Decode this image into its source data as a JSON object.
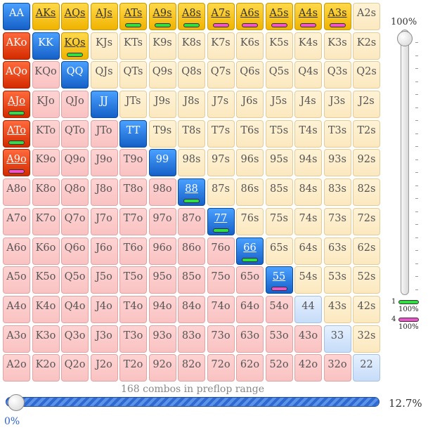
{
  "grid": {
    "rows": [
      [
        {
          "label": "AA",
          "kind": "pair",
          "selected": true
        },
        {
          "label": "AKs",
          "kind": "suit",
          "selected": true
        },
        {
          "label": "AQs",
          "kind": "suit",
          "selected": true
        },
        {
          "label": "AJs",
          "kind": "suit",
          "selected": true
        },
        {
          "label": "ATs",
          "kind": "suit",
          "selected": true,
          "marker": "green"
        },
        {
          "label": "A9s",
          "kind": "suit",
          "selected": true,
          "marker": "green"
        },
        {
          "label": "A8s",
          "kind": "suit",
          "selected": true,
          "marker": "green"
        },
        {
          "label": "A7s",
          "kind": "suit",
          "selected": true,
          "marker": "magenta"
        },
        {
          "label": "A6s",
          "kind": "suit",
          "selected": true,
          "marker": "magenta"
        },
        {
          "label": "A5s",
          "kind": "suit",
          "selected": true,
          "marker": "magenta"
        },
        {
          "label": "A4s",
          "kind": "suit",
          "selected": true,
          "marker": "magenta"
        },
        {
          "label": "A3s",
          "kind": "suit",
          "selected": true,
          "marker": "magenta"
        },
        {
          "label": "A2s",
          "kind": "suit",
          "selected": false
        }
      ],
      [
        {
          "label": "AKo",
          "kind": "off",
          "selected": true
        },
        {
          "label": "KK",
          "kind": "pair",
          "selected": true
        },
        {
          "label": "KQs",
          "kind": "suit",
          "selected": true,
          "marker": "green"
        },
        {
          "label": "KJs",
          "kind": "suit",
          "selected": false
        },
        {
          "label": "KTs",
          "kind": "suit",
          "selected": false
        },
        {
          "label": "K9s",
          "kind": "suit",
          "selected": false
        },
        {
          "label": "K8s",
          "kind": "suit",
          "selected": false
        },
        {
          "label": "K7s",
          "kind": "suit",
          "selected": false
        },
        {
          "label": "K6s",
          "kind": "suit",
          "selected": false
        },
        {
          "label": "K5s",
          "kind": "suit",
          "selected": false
        },
        {
          "label": "K4s",
          "kind": "suit",
          "selected": false
        },
        {
          "label": "K3s",
          "kind": "suit",
          "selected": false
        },
        {
          "label": "K2s",
          "kind": "suit",
          "selected": false
        }
      ],
      [
        {
          "label": "AQo",
          "kind": "off",
          "selected": true
        },
        {
          "label": "KQo",
          "kind": "off",
          "selected": false
        },
        {
          "label": "QQ",
          "kind": "pair",
          "selected": true
        },
        {
          "label": "QJs",
          "kind": "suit",
          "selected": false
        },
        {
          "label": "QTs",
          "kind": "suit",
          "selected": false
        },
        {
          "label": "Q9s",
          "kind": "suit",
          "selected": false
        },
        {
          "label": "Q8s",
          "kind": "suit",
          "selected": false
        },
        {
          "label": "Q7s",
          "kind": "suit",
          "selected": false
        },
        {
          "label": "Q6s",
          "kind": "suit",
          "selected": false
        },
        {
          "label": "Q5s",
          "kind": "suit",
          "selected": false
        },
        {
          "label": "Q4s",
          "kind": "suit",
          "selected": false
        },
        {
          "label": "Q3s",
          "kind": "suit",
          "selected": false
        },
        {
          "label": "Q2s",
          "kind": "suit",
          "selected": false
        }
      ],
      [
        {
          "label": "AJo",
          "kind": "off",
          "selected": true,
          "marker": "green"
        },
        {
          "label": "KJo",
          "kind": "off",
          "selected": false
        },
        {
          "label": "QJo",
          "kind": "off",
          "selected": false
        },
        {
          "label": "JJ",
          "kind": "pair",
          "selected": true
        },
        {
          "label": "JTs",
          "kind": "suit",
          "selected": false
        },
        {
          "label": "J9s",
          "kind": "suit",
          "selected": false
        },
        {
          "label": "J8s",
          "kind": "suit",
          "selected": false
        },
        {
          "label": "J7s",
          "kind": "suit",
          "selected": false
        },
        {
          "label": "J6s",
          "kind": "suit",
          "selected": false
        },
        {
          "label": "J5s",
          "kind": "suit",
          "selected": false
        },
        {
          "label": "J4s",
          "kind": "suit",
          "selected": false
        },
        {
          "label": "J3s",
          "kind": "suit",
          "selected": false
        },
        {
          "label": "J2s",
          "kind": "suit",
          "selected": false
        }
      ],
      [
        {
          "label": "ATo",
          "kind": "off",
          "selected": true,
          "marker": "green"
        },
        {
          "label": "KTo",
          "kind": "off",
          "selected": false
        },
        {
          "label": "QTo",
          "kind": "off",
          "selected": false
        },
        {
          "label": "JTo",
          "kind": "off",
          "selected": false
        },
        {
          "label": "TT",
          "kind": "pair",
          "selected": true
        },
        {
          "label": "T9s",
          "kind": "suit",
          "selected": false
        },
        {
          "label": "T8s",
          "kind": "suit",
          "selected": false
        },
        {
          "label": "T7s",
          "kind": "suit",
          "selected": false
        },
        {
          "label": "T6s",
          "kind": "suit",
          "selected": false
        },
        {
          "label": "T5s",
          "kind": "suit",
          "selected": false
        },
        {
          "label": "T4s",
          "kind": "suit",
          "selected": false
        },
        {
          "label": "T3s",
          "kind": "suit",
          "selected": false
        },
        {
          "label": "T2s",
          "kind": "suit",
          "selected": false
        }
      ],
      [
        {
          "label": "A9o",
          "kind": "off",
          "selected": true,
          "marker": "magenta"
        },
        {
          "label": "K9o",
          "kind": "off",
          "selected": false
        },
        {
          "label": "Q9o",
          "kind": "off",
          "selected": false
        },
        {
          "label": "J9o",
          "kind": "off",
          "selected": false
        },
        {
          "label": "T9o",
          "kind": "off",
          "selected": false
        },
        {
          "label": "99",
          "kind": "pair",
          "selected": true
        },
        {
          "label": "98s",
          "kind": "suit",
          "selected": false
        },
        {
          "label": "97s",
          "kind": "suit",
          "selected": false
        },
        {
          "label": "96s",
          "kind": "suit",
          "selected": false
        },
        {
          "label": "95s",
          "kind": "suit",
          "selected": false
        },
        {
          "label": "94s",
          "kind": "suit",
          "selected": false
        },
        {
          "label": "93s",
          "kind": "suit",
          "selected": false
        },
        {
          "label": "92s",
          "kind": "suit",
          "selected": false
        }
      ],
      [
        {
          "label": "A8o",
          "kind": "off",
          "selected": false
        },
        {
          "label": "K8o",
          "kind": "off",
          "selected": false
        },
        {
          "label": "Q8o",
          "kind": "off",
          "selected": false
        },
        {
          "label": "J8o",
          "kind": "off",
          "selected": false
        },
        {
          "label": "T8o",
          "kind": "off",
          "selected": false
        },
        {
          "label": "98o",
          "kind": "off",
          "selected": false
        },
        {
          "label": "88",
          "kind": "pair",
          "selected": true,
          "marker": "green"
        },
        {
          "label": "87s",
          "kind": "suit",
          "selected": false
        },
        {
          "label": "86s",
          "kind": "suit",
          "selected": false
        },
        {
          "label": "85s",
          "kind": "suit",
          "selected": false
        },
        {
          "label": "84s",
          "kind": "suit",
          "selected": false
        },
        {
          "label": "83s",
          "kind": "suit",
          "selected": false
        },
        {
          "label": "82s",
          "kind": "suit",
          "selected": false
        }
      ],
      [
        {
          "label": "A7o",
          "kind": "off",
          "selected": false
        },
        {
          "label": "K7o",
          "kind": "off",
          "selected": false
        },
        {
          "label": "Q7o",
          "kind": "off",
          "selected": false
        },
        {
          "label": "J7o",
          "kind": "off",
          "selected": false
        },
        {
          "label": "T7o",
          "kind": "off",
          "selected": false
        },
        {
          "label": "97o",
          "kind": "off",
          "selected": false
        },
        {
          "label": "87o",
          "kind": "off",
          "selected": false
        },
        {
          "label": "77",
          "kind": "pair",
          "selected": true,
          "marker": "green"
        },
        {
          "label": "76s",
          "kind": "suit",
          "selected": false
        },
        {
          "label": "75s",
          "kind": "suit",
          "selected": false
        },
        {
          "label": "74s",
          "kind": "suit",
          "selected": false
        },
        {
          "label": "73s",
          "kind": "suit",
          "selected": false
        },
        {
          "label": "72s",
          "kind": "suit",
          "selected": false
        }
      ],
      [
        {
          "label": "A6o",
          "kind": "off",
          "selected": false
        },
        {
          "label": "K6o",
          "kind": "off",
          "selected": false
        },
        {
          "label": "Q6o",
          "kind": "off",
          "selected": false
        },
        {
          "label": "J6o",
          "kind": "off",
          "selected": false
        },
        {
          "label": "T6o",
          "kind": "off",
          "selected": false
        },
        {
          "label": "96o",
          "kind": "off",
          "selected": false
        },
        {
          "label": "86o",
          "kind": "off",
          "selected": false
        },
        {
          "label": "76o",
          "kind": "off",
          "selected": false
        },
        {
          "label": "66",
          "kind": "pair",
          "selected": true,
          "marker": "green"
        },
        {
          "label": "65s",
          "kind": "suit",
          "selected": false
        },
        {
          "label": "64s",
          "kind": "suit",
          "selected": false
        },
        {
          "label": "63s",
          "kind": "suit",
          "selected": false
        },
        {
          "label": "62s",
          "kind": "suit",
          "selected": false
        }
      ],
      [
        {
          "label": "A5o",
          "kind": "off",
          "selected": false
        },
        {
          "label": "K5o",
          "kind": "off",
          "selected": false
        },
        {
          "label": "Q5o",
          "kind": "off",
          "selected": false
        },
        {
          "label": "J5o",
          "kind": "off",
          "selected": false
        },
        {
          "label": "T5o",
          "kind": "off",
          "selected": false
        },
        {
          "label": "95o",
          "kind": "off",
          "selected": false
        },
        {
          "label": "85o",
          "kind": "off",
          "selected": false
        },
        {
          "label": "75o",
          "kind": "off",
          "selected": false
        },
        {
          "label": "65o",
          "kind": "off",
          "selected": false
        },
        {
          "label": "55",
          "kind": "pair",
          "selected": true,
          "marker": "magenta"
        },
        {
          "label": "54s",
          "kind": "suit",
          "selected": false
        },
        {
          "label": "53s",
          "kind": "suit",
          "selected": false
        },
        {
          "label": "52s",
          "kind": "suit",
          "selected": false
        }
      ],
      [
        {
          "label": "A4o",
          "kind": "off",
          "selected": false
        },
        {
          "label": "K4o",
          "kind": "off",
          "selected": false
        },
        {
          "label": "Q4o",
          "kind": "off",
          "selected": false
        },
        {
          "label": "J4o",
          "kind": "off",
          "selected": false
        },
        {
          "label": "T4o",
          "kind": "off",
          "selected": false
        },
        {
          "label": "94o",
          "kind": "off",
          "selected": false
        },
        {
          "label": "84o",
          "kind": "off",
          "selected": false
        },
        {
          "label": "74o",
          "kind": "off",
          "selected": false
        },
        {
          "label": "64o",
          "kind": "off",
          "selected": false
        },
        {
          "label": "54o",
          "kind": "off",
          "selected": false
        },
        {
          "label": "44",
          "kind": "pair",
          "selected": false
        },
        {
          "label": "43s",
          "kind": "suit",
          "selected": false
        },
        {
          "label": "42s",
          "kind": "suit",
          "selected": false
        }
      ],
      [
        {
          "label": "A3o",
          "kind": "off",
          "selected": false
        },
        {
          "label": "K3o",
          "kind": "off",
          "selected": false
        },
        {
          "label": "Q3o",
          "kind": "off",
          "selected": false
        },
        {
          "label": "J3o",
          "kind": "off",
          "selected": false
        },
        {
          "label": "T3o",
          "kind": "off",
          "selected": false
        },
        {
          "label": "93o",
          "kind": "off",
          "selected": false
        },
        {
          "label": "83o",
          "kind": "off",
          "selected": false
        },
        {
          "label": "73o",
          "kind": "off",
          "selected": false
        },
        {
          "label": "63o",
          "kind": "off",
          "selected": false
        },
        {
          "label": "53o",
          "kind": "off",
          "selected": false
        },
        {
          "label": "43o",
          "kind": "off",
          "selected": false
        },
        {
          "label": "33",
          "kind": "pair",
          "selected": false
        },
        {
          "label": "32s",
          "kind": "suit",
          "selected": false
        }
      ],
      [
        {
          "label": "A2o",
          "kind": "off",
          "selected": false
        },
        {
          "label": "K2o",
          "kind": "off",
          "selected": false
        },
        {
          "label": "Q2o",
          "kind": "off",
          "selected": false
        },
        {
          "label": "J2o",
          "kind": "off",
          "selected": false
        },
        {
          "label": "T2o",
          "kind": "off",
          "selected": false
        },
        {
          "label": "92o",
          "kind": "off",
          "selected": false
        },
        {
          "label": "82o",
          "kind": "off",
          "selected": false
        },
        {
          "label": "72o",
          "kind": "off",
          "selected": false
        },
        {
          "label": "62o",
          "kind": "off",
          "selected": false
        },
        {
          "label": "52o",
          "kind": "off",
          "selected": false
        },
        {
          "label": "42o",
          "kind": "off",
          "selected": false
        },
        {
          "label": "32o",
          "kind": "off",
          "selected": false
        },
        {
          "label": "22",
          "kind": "pair",
          "selected": false
        }
      ]
    ]
  },
  "vertical_slider": {
    "label": "100%",
    "value_percent": 100
  },
  "legend": [
    {
      "number": "1",
      "color": "#33dd44",
      "percent": "100%"
    },
    {
      "number": "4",
      "color": "#ee55cc",
      "percent": "100%"
    }
  ],
  "range_slider": {
    "combos_text": "168 combos in preflop range",
    "percent_label": "12.7%",
    "min_label": "0%",
    "value_percent": 12.7
  },
  "colors": {
    "suited_selected": "#f5c000",
    "offsuit_selected": "#e64a19",
    "pair_selected": "#1f6fd6",
    "suited_unselected": "#fff1cc",
    "offsuit_unselected": "#fcc8c8",
    "pair_unselected": "#d6e6fb",
    "marker_green": "#33dd44",
    "marker_magenta": "#ee55cc"
  }
}
